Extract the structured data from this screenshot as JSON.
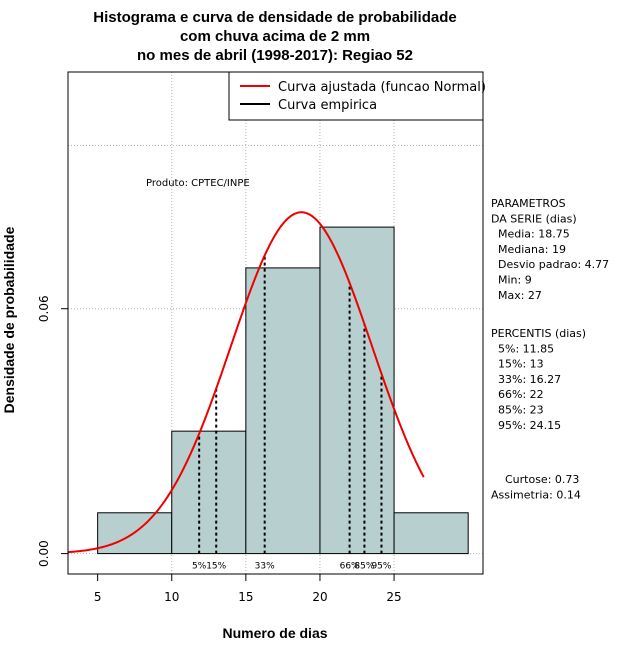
{
  "chart_data": {
    "type": "bar",
    "title_lines": [
      "Histograma e curva de densidade de probabilidade",
      "com chuva acima de 2 mm",
      "no mes de abril (1998-2017): Regiao 52"
    ],
    "xlabel": "Numero de dias",
    "ylabel": "Densidade de probabilidade",
    "xlim": [
      3,
      31
    ],
    "ylim": [
      -0.005,
      0.118
    ],
    "x_ticks": [
      5,
      10,
      15,
      20,
      25
    ],
    "x_tick_labels": [
      "5",
      "10",
      "15",
      "20",
      "25"
    ],
    "y_ticks": [
      0,
      0.06
    ],
    "y_tick_labels": [
      "0.00",
      "0.06"
    ],
    "grid": true,
    "bins": [
      {
        "x0": 5,
        "x1": 10,
        "density": 0.01
      },
      {
        "x0": 10,
        "x1": 15,
        "density": 0.03
      },
      {
        "x0": 15,
        "x1": 20,
        "density": 0.07
      },
      {
        "x0": 20,
        "x1": 25,
        "density": 0.08
      },
      {
        "x0": 25,
        "x1": 30,
        "density": 0.01
      }
    ],
    "bar_color": "#b8cfcf",
    "normal_curve": {
      "mean": 18.75,
      "sd": 4.77,
      "x_from": 3,
      "x_to": 27,
      "color": "#ee0000"
    },
    "percentiles": [
      {
        "label": "5%",
        "value": 11.85
      },
      {
        "label": "15%",
        "value": 13
      },
      {
        "label": "33%",
        "value": 16.27
      },
      {
        "label": "66%",
        "value": 22
      },
      {
        "label": "85%",
        "value": 23
      },
      {
        "label": "95%",
        "value": 24.15
      }
    ],
    "legend": {
      "placement": "top-right",
      "entries": [
        {
          "label": "Curva ajustada (funcao Normal)",
          "color": "#ee0000"
        },
        {
          "label": "Curva empirica",
          "color": "#000000"
        }
      ]
    },
    "annotation": "Produto: CPTEC/INPE"
  },
  "side_panel": {
    "parametros_lines": [
      "PARAMETROS",
      "DA SERIE (dias)",
      "  Media: 18.75",
      "  Mediana: 19",
      "  Desvio padrao: 4.77",
      "  Min: 9",
      "  Max: 27"
    ],
    "percentis_lines": [
      "PERCENTIS (dias)",
      "  5%: 11.85",
      "  15%: 13",
      "  33%: 16.27",
      "  66%: 22",
      "  85%: 23",
      "  95%: 24.15"
    ],
    "stats_lines": [
      "    Curtose: 0.73",
      "Assimetria: 0.14"
    ]
  }
}
